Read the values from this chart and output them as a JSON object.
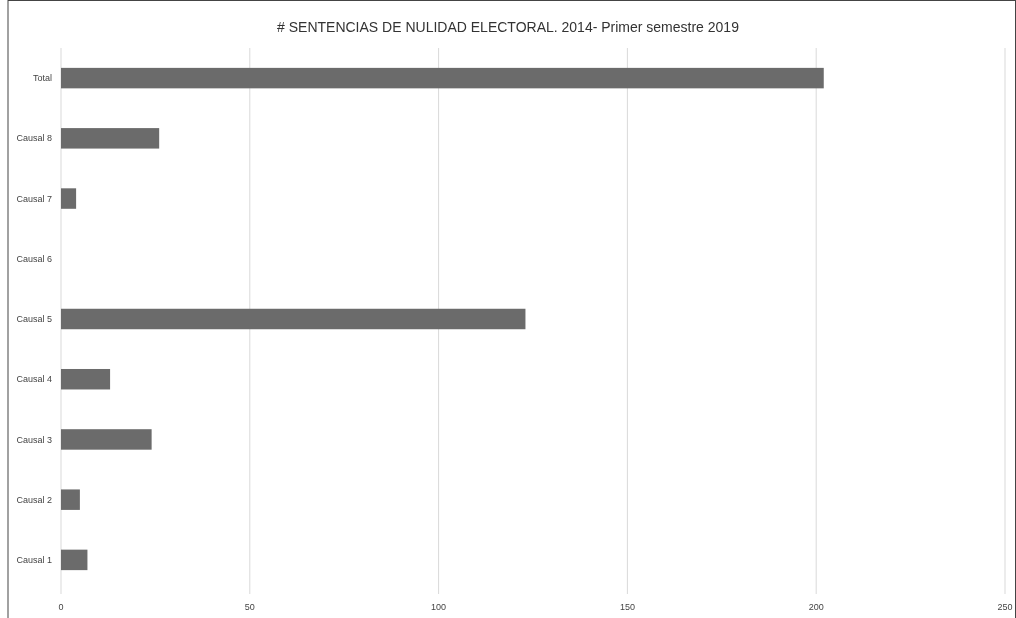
{
  "chart_data": {
    "type": "bar",
    "orientation": "horizontal",
    "title": "# SENTENCIAS DE NULIDAD ELECTORAL. 2014- Primer semestre 2019",
    "categories": [
      "Total",
      "Causal 8",
      "Causal 7",
      "Causal 6",
      "Causal 5",
      "Causal 4",
      "Causal 3",
      "Causal 2",
      "Causal 1"
    ],
    "values": [
      202,
      26,
      4,
      0,
      123,
      13,
      24,
      5,
      7
    ],
    "color": "#6b6b6b",
    "xlim": [
      0,
      250
    ],
    "xticks": [
      0,
      50,
      100,
      150,
      200,
      250
    ],
    "grid": "x"
  }
}
